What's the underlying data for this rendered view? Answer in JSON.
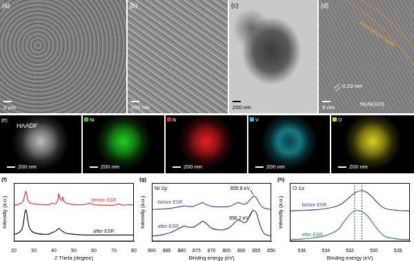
{
  "image_panels": [
    {
      "label": "(a)",
      "scale_bar": "2 μm"
    },
    {
      "label": "(b)",
      "scale_bar": "200 nm"
    },
    {
      "label": "(c)",
      "scale_bar": "200 nm"
    },
    {
      "label": "(d)",
      "scale_bar": "5 nm",
      "annotations": [
        "Amorphous layer",
        "0.23 nm",
        "Ni₃N(110)"
      ]
    }
  ],
  "elemental_mapping": {
    "label": "(e)",
    "maps": [
      {
        "name": "HAADF",
        "color": "#bdbdbd",
        "scale_bar": "200 nm"
      },
      {
        "name": "Ni",
        "color": "#1fd11f",
        "scale_bar": "200 nm"
      },
      {
        "name": "N",
        "color": "#e82020",
        "scale_bar": "200 nm"
      },
      {
        "name": "V",
        "color": "#22c8d8",
        "scale_bar": "200 nm"
      },
      {
        "name": "O",
        "color": "#d8d020",
        "scale_bar": "200 nm"
      }
    ]
  },
  "chart_data": [
    {
      "panel": "(f)",
      "type": "line",
      "x_label": "2 Theta (degree)",
      "y_label": "Intensity (a.u.)",
      "xlim": [
        20,
        80
      ],
      "xticks": [
        20,
        30,
        40,
        50,
        60,
        70,
        80
      ],
      "ylim": [
        0,
        10
      ],
      "tick_labels": "x",
      "series": [
        {
          "name": "before ESR",
          "color": "#e8312f",
          "x": [
            20,
            22,
            24,
            25,
            25.5,
            26,
            26.5,
            27,
            28,
            30,
            35,
            38,
            39,
            40,
            41,
            42,
            42.5,
            43,
            44,
            44.5,
            45,
            46,
            48,
            50,
            55,
            58,
            60,
            65,
            70,
            72,
            75,
            78,
            80
          ],
          "values": [
            6.2,
            6.3,
            6.6,
            7.2,
            8.0,
            8.6,
            8.0,
            7.1,
            6.6,
            6.4,
            6.3,
            6.3,
            6.6,
            6.4,
            6.5,
            7.0,
            8.2,
            7.4,
            7.0,
            7.6,
            6.9,
            6.6,
            6.4,
            6.3,
            6.3,
            6.5,
            6.3,
            6.2,
            6.2,
            6.4,
            6.2,
            6.3,
            6.2
          ]
        },
        {
          "name": "after ESR",
          "color": "#111111",
          "x": [
            20,
            22,
            24,
            25,
            25.5,
            26,
            26.5,
            27,
            28,
            30,
            35,
            38,
            39,
            40,
            41,
            42,
            42.5,
            43,
            44,
            44.5,
            45,
            46,
            48,
            50,
            55,
            58,
            60,
            65,
            70,
            72,
            75,
            78,
            80
          ],
          "values": [
            1.2,
            1.4,
            2.0,
            3.6,
            4.9,
            5.4,
            4.8,
            3.6,
            2.2,
            1.5,
            1.2,
            1.3,
            1.5,
            1.6,
            1.8,
            2.1,
            2.2,
            2.1,
            1.8,
            1.7,
            1.6,
            1.4,
            1.3,
            1.2,
            1.1,
            1.1,
            1.1,
            1.1,
            1.1,
            1.1,
            1.1,
            1.1,
            1.1
          ]
        }
      ]
    },
    {
      "panel": "(g)",
      "type": "line",
      "title": "Ni 2p",
      "x_label": "Binding energy (eV)",
      "y_label": "Intensity (a.u.)",
      "xlim": [
        890,
        850
      ],
      "xticks": [
        890,
        885,
        880,
        875,
        870,
        865,
        860,
        855,
        850
      ],
      "ylim": [
        0,
        11
      ],
      "tick_labels": "x",
      "series": [
        {
          "name": "before ESR",
          "color": "#3b4f9e",
          "x": [
            890,
            888,
            886,
            884,
            882,
            880,
            879,
            878,
            876,
            874,
            873,
            872,
            870,
            868,
            866,
            864,
            862,
            861,
            860,
            859,
            858,
            857,
            856,
            855.8,
            855,
            854,
            853,
            852,
            850
          ],
          "values": [
            6.0,
            6.05,
            6.1,
            6.2,
            6.4,
            6.6,
            6.7,
            6.6,
            6.6,
            7.1,
            7.3,
            7.0,
            6.6,
            6.5,
            6.5,
            6.6,
            7.1,
            7.3,
            7.1,
            7.0,
            7.3,
            7.9,
            8.5,
            8.6,
            8.2,
            7.2,
            6.5,
            6.2,
            6.0
          ]
        },
        {
          "name": "after ESR",
          "color": "#5a2d91",
          "x": [
            890,
            888,
            886,
            884,
            882,
            880,
            879,
            878,
            876,
            874,
            873,
            872,
            870,
            868,
            866,
            864,
            862,
            861,
            860,
            859,
            858,
            857,
            856.2,
            856,
            855,
            854,
            853,
            852,
            850
          ],
          "values": [
            1.0,
            1.1,
            1.3,
            1.6,
            2.1,
            2.7,
            2.9,
            2.7,
            2.7,
            3.4,
            3.8,
            3.5,
            2.5,
            2.2,
            2.2,
            2.6,
            3.7,
            4.0,
            3.8,
            3.5,
            3.9,
            5.0,
            5.9,
            5.85,
            5.4,
            3.5,
            2.0,
            1.3,
            1.0
          ]
        }
      ],
      "annotations": [
        {
          "text": "855.8 eV",
          "x": 855.8,
          "y": 8.6
        },
        {
          "text": "856.2 eV",
          "x": 856.2,
          "y": 5.9
        }
      ]
    },
    {
      "panel": "(h)",
      "type": "line",
      "title": "O 1s",
      "x_label": "Binding energy (eV)",
      "y_label": "Intensity (a.u.)",
      "xlim": [
        537,
        527
      ],
      "xticks": [
        536,
        534,
        532,
        530,
        528
      ],
      "ylim": [
        0,
        10
      ],
      "tick_labels": "x",
      "vlines": [
        531.6,
        531.0
      ],
      "series": [
        {
          "name": "before ESR",
          "color": "#2f3f8f",
          "x": [
            537,
            536,
            535,
            534,
            533,
            532.5,
            532,
            531.5,
            531,
            530.5,
            530,
            529.5,
            529,
            528,
            527
          ],
          "values": [
            5.2,
            5.3,
            5.4,
            5.6,
            6.1,
            6.7,
            7.6,
            8.4,
            8.7,
            8.3,
            7.3,
            6.2,
            5.6,
            5.3,
            5.2
          ]
        },
        {
          "name": "after ESR",
          "color": "#2e8b57",
          "x": [
            537,
            536,
            535,
            534,
            533,
            532.5,
            532,
            531.5,
            531,
            530.5,
            530,
            529.5,
            529,
            528,
            527
          ],
          "values": [
            0.3,
            0.4,
            0.6,
            1.0,
            2.0,
            3.3,
            4.6,
            5.3,
            5.1,
            4.3,
            2.9,
            1.6,
            0.8,
            0.4,
            0.3
          ]
        }
      ]
    }
  ]
}
